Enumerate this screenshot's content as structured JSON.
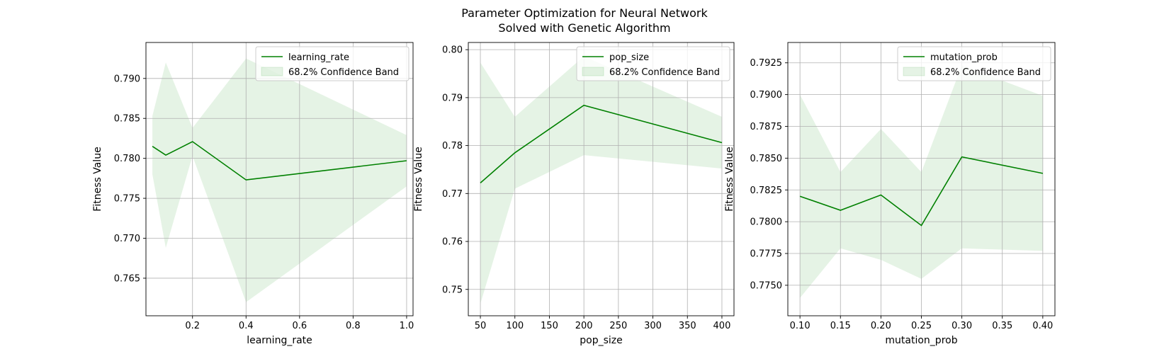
{
  "figure": {
    "title_line1": "Parameter Optimization for Neural Network",
    "title_line2": "Solved with Genetic Algorithm"
  },
  "colors": {
    "line": "#008000",
    "band": "#2ca02c",
    "grid": "#b0b0b0"
  },
  "chart_data": [
    {
      "type": "line",
      "xlabel": "learning_rate",
      "ylabel": "Fitness Value",
      "xlim": [
        0.026,
        1.024
      ],
      "ylim": [
        0.7603,
        0.7945
      ],
      "xticks": [
        0.2,
        0.4,
        0.6,
        0.8,
        1.0
      ],
      "xtick_labels": [
        "0.2",
        "0.4",
        "0.6",
        "0.8",
        "1.0"
      ],
      "yticks": [
        0.765,
        0.77,
        0.775,
        0.78,
        0.785,
        0.79
      ],
      "ytick_labels": [
        "0.765",
        "0.770",
        "0.775",
        "0.780",
        "0.785",
        "0.790"
      ],
      "grid": true,
      "legend_position": "top-right",
      "series": [
        {
          "name": "learning_rate",
          "x": [
            0.05,
            0.1,
            0.2,
            0.4,
            1.0
          ],
          "y": [
            0.7815,
            0.7804,
            0.7821,
            0.7773,
            0.7797
          ],
          "band_name": "68.2% Confidence Band",
          "lower": [
            0.778,
            0.7688,
            0.7803,
            0.762,
            0.7765
          ],
          "upper": [
            0.7853,
            0.792,
            0.7838,
            0.7925,
            0.7829
          ]
        }
      ]
    },
    {
      "type": "line",
      "xlabel": "pop_size",
      "ylabel": "Fitness Value",
      "xlim": [
        32.5,
        417.5
      ],
      "ylim": [
        0.7445,
        0.8015
      ],
      "xticks": [
        50,
        100,
        150,
        200,
        250,
        300,
        350,
        400
      ],
      "xtick_labels": [
        "50",
        "100",
        "150",
        "200",
        "250",
        "300",
        "350",
        "400"
      ],
      "yticks": [
        0.75,
        0.76,
        0.77,
        0.78,
        0.79,
        0.8
      ],
      "ytick_labels": [
        "0.75",
        "0.76",
        "0.77",
        "0.78",
        "0.79",
        "0.80"
      ],
      "grid": true,
      "legend_position": "top-right",
      "series": [
        {
          "name": "pop_size",
          "x": [
            50,
            100,
            200,
            400
          ],
          "y": [
            0.7722,
            0.7785,
            0.7884,
            0.7806
          ],
          "band_name": "68.2% Confidence Band",
          "lower": [
            0.747,
            0.771,
            0.778,
            0.7752
          ],
          "upper": [
            0.7973,
            0.786,
            0.7986,
            0.786
          ]
        }
      ]
    },
    {
      "type": "line",
      "xlabel": "mutation_prob",
      "ylabel": "Fitness Value",
      "xlim": [
        0.085,
        0.415
      ],
      "ylim": [
        0.7726,
        0.7941
      ],
      "xticks": [
        0.1,
        0.15,
        0.2,
        0.25,
        0.3,
        0.35,
        0.4
      ],
      "xtick_labels": [
        "0.10",
        "0.15",
        "0.20",
        "0.25",
        "0.30",
        "0.35",
        "0.40"
      ],
      "yticks": [
        0.775,
        0.7775,
        0.78,
        0.7825,
        0.785,
        0.7875,
        0.79,
        0.7925
      ],
      "ytick_labels": [
        "0.7750",
        "0.7775",
        "0.7800",
        "0.7825",
        "0.7850",
        "0.7875",
        "0.7900",
        "0.7925"
      ],
      "grid": true,
      "legend_position": "top-right",
      "series": [
        {
          "name": "mutation_prob",
          "x": [
            0.1,
            0.15,
            0.2,
            0.25,
            0.3,
            0.4
          ],
          "y": [
            0.782,
            0.7809,
            0.7821,
            0.7797,
            0.7851,
            0.7838
          ],
          "band_name": "68.2% Confidence Band",
          "lower": [
            0.774,
            0.7779,
            0.777,
            0.7755,
            0.7779,
            0.7777
          ],
          "upper": [
            0.79,
            0.7839,
            0.7873,
            0.7839,
            0.7923,
            0.7899
          ]
        }
      ]
    }
  ]
}
